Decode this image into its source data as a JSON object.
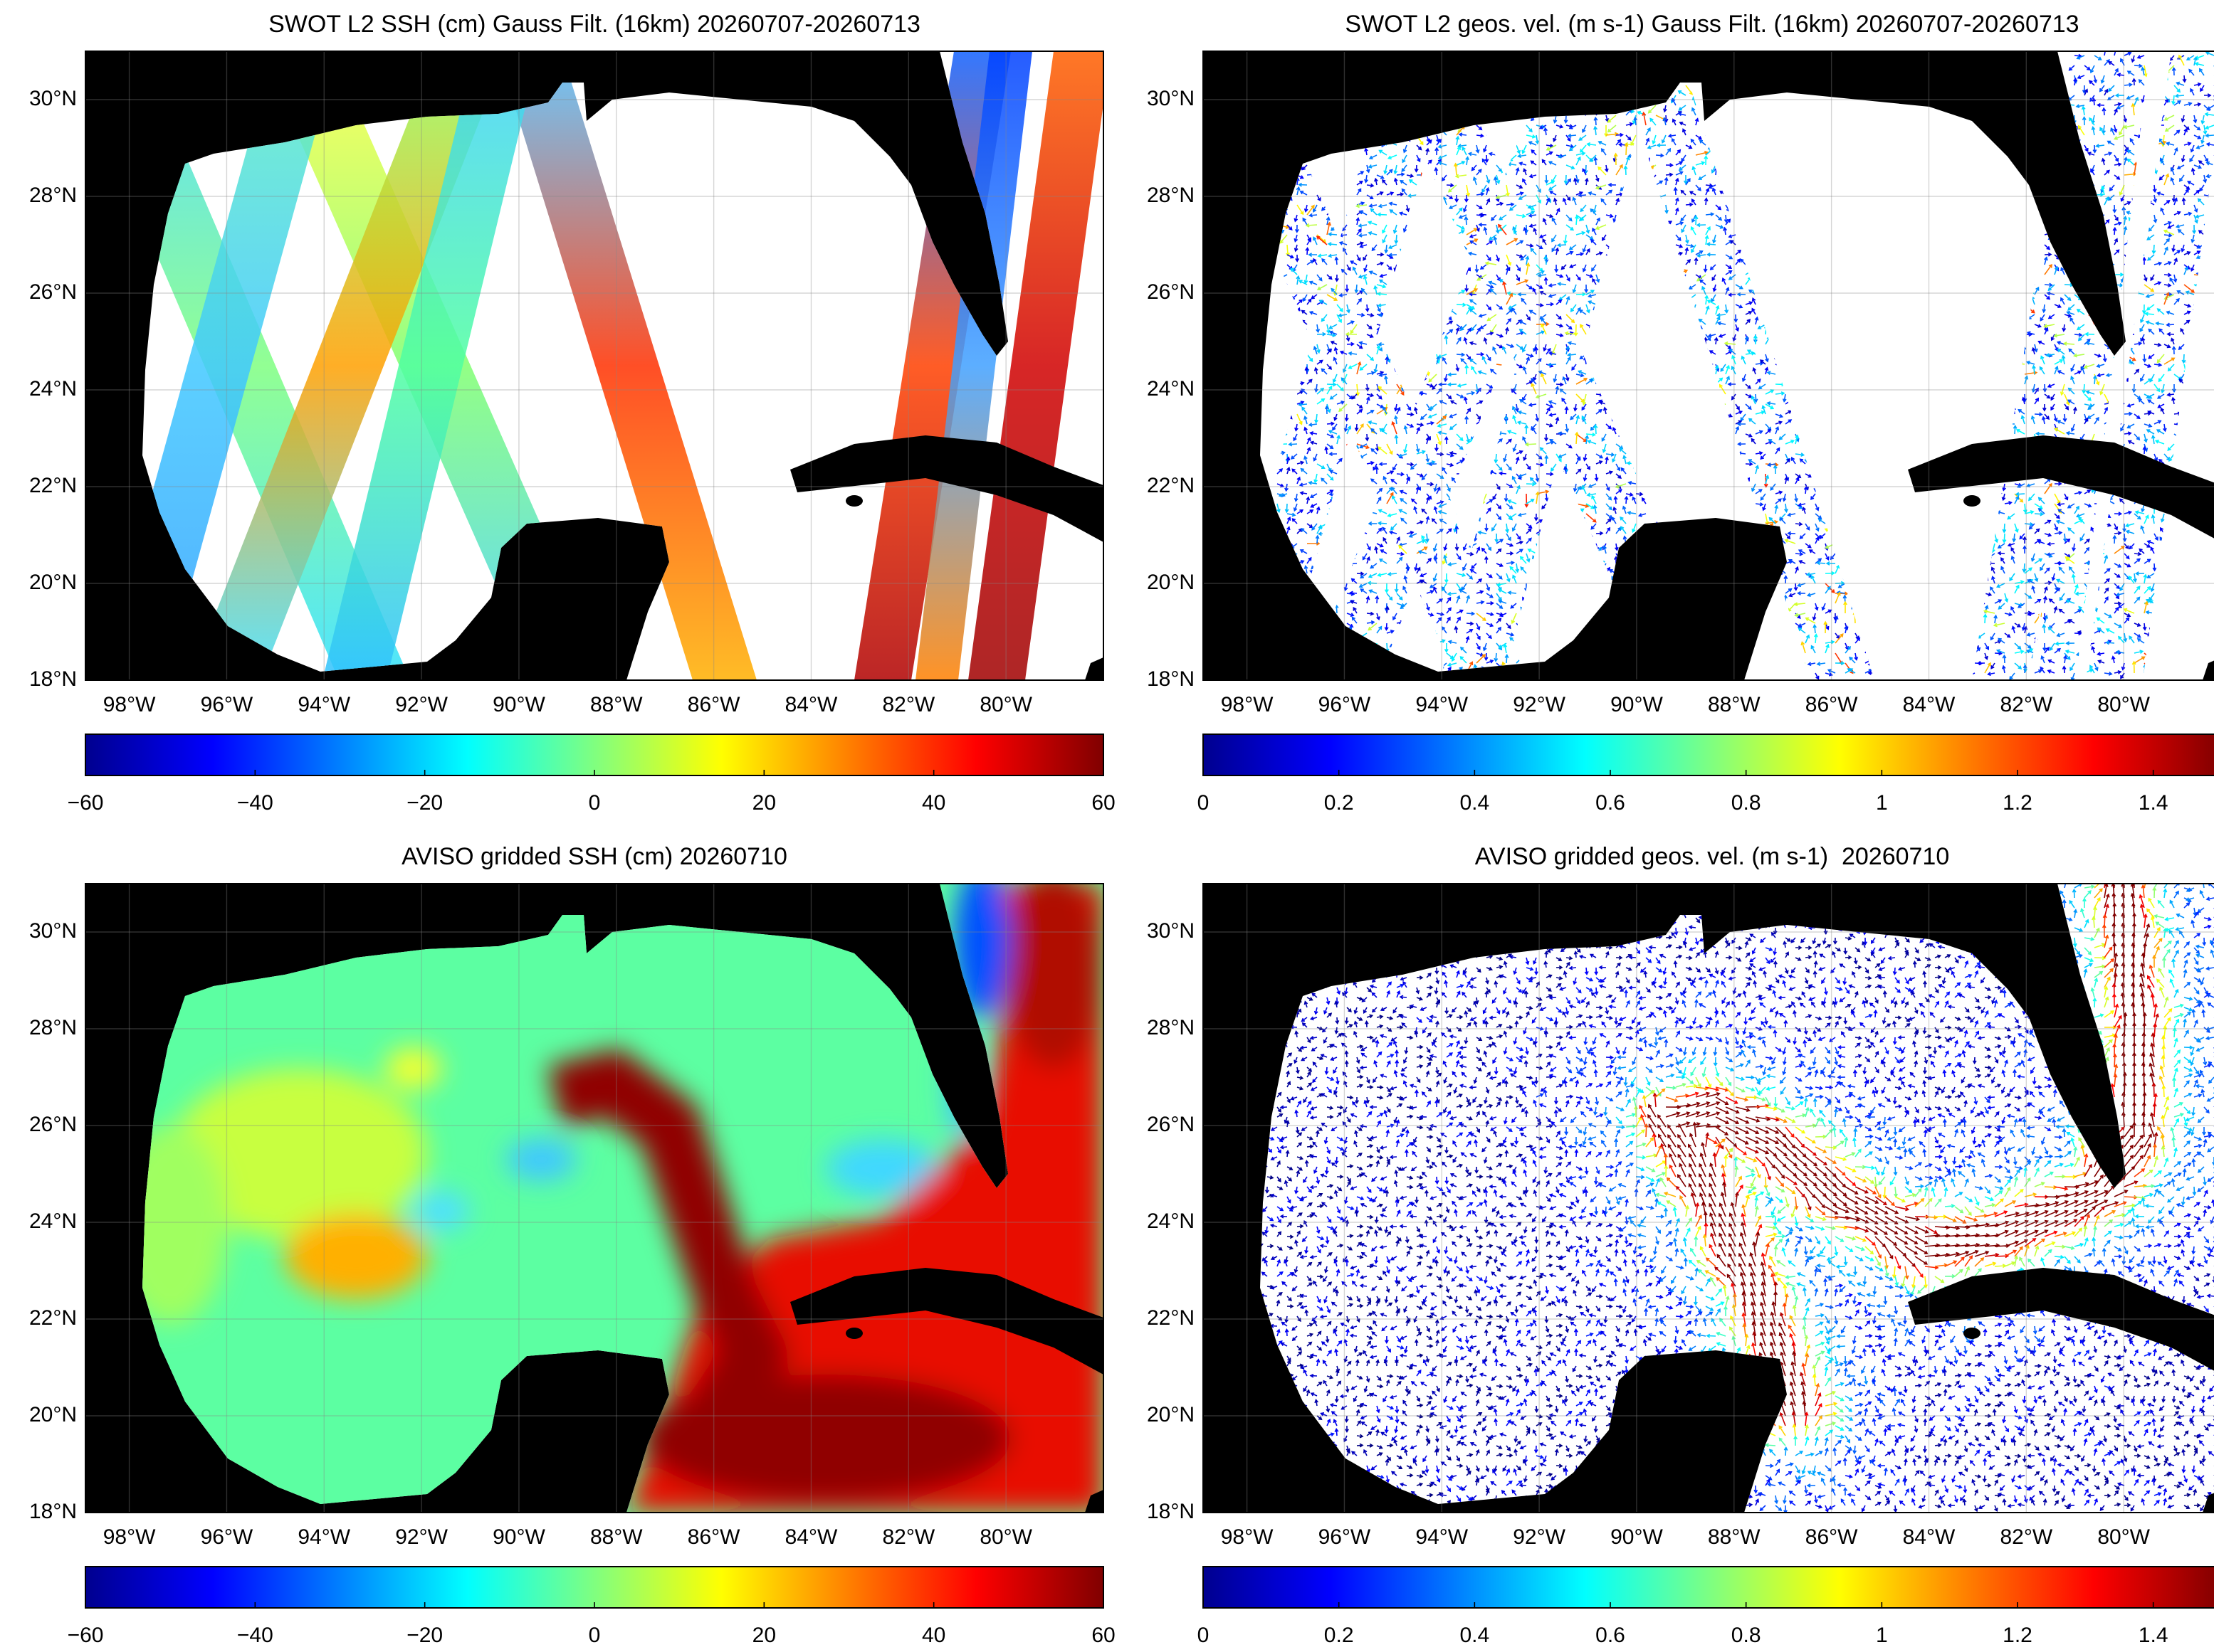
{
  "maps": [
    {
      "type": "swath-ssh",
      "title": "SWOT L2 SSH (cm) Gauss Filt. (16km) 20260707-20260713",
      "xlim": [
        -98.9,
        -78
      ],
      "ylim": [
        18,
        31
      ],
      "xticks": [
        {
          "value": -98,
          "label": "98°W"
        },
        {
          "value": -96,
          "label": "96°W"
        },
        {
          "value": -94,
          "label": "94°W"
        },
        {
          "value": -92,
          "label": "92°W"
        },
        {
          "value": -90,
          "label": "90°W"
        },
        {
          "value": -88,
          "label": "88°W"
        },
        {
          "value": -86,
          "label": "86°W"
        },
        {
          "value": -84,
          "label": "84°W"
        },
        {
          "value": -82,
          "label": "82°W"
        },
        {
          "value": -80,
          "label": "80°W"
        }
      ],
      "yticks": [
        {
          "value": 18,
          "label": "18°N"
        },
        {
          "value": 20,
          "label": "20°N"
        },
        {
          "value": 22,
          "label": "22°N"
        },
        {
          "value": 24,
          "label": "24°N"
        },
        {
          "value": 26,
          "label": "26°N"
        },
        {
          "value": 28,
          "label": "28°N"
        },
        {
          "value": 30,
          "label": "30°N"
        }
      ],
      "colorbar": {
        "clim": [
          -60,
          60
        ],
        "ticks": [
          {
            "value": -60,
            "label": "−60"
          },
          {
            "value": -40,
            "label": "−40"
          },
          {
            "value": -20,
            "label": "−20"
          },
          0,
          20,
          40,
          60
        ]
      }
    },
    {
      "type": "swath-velocity",
      "title": "SWOT L2 geos. vel. (m s-1) Gauss Filt. (16km) 20260707-20260713",
      "xlim": [
        -98.9,
        -78
      ],
      "ylim": [
        18,
        31
      ],
      "xticks": [
        {
          "value": -98,
          "label": "98°W"
        },
        {
          "value": -96,
          "label": "96°W"
        },
        {
          "value": -94,
          "label": "94°W"
        },
        {
          "value": -92,
          "label": "92°W"
        },
        {
          "value": -90,
          "label": "90°W"
        },
        {
          "value": -88,
          "label": "88°W"
        },
        {
          "value": -86,
          "label": "86°W"
        },
        {
          "value": -84,
          "label": "84°W"
        },
        {
          "value": -82,
          "label": "82°W"
        },
        {
          "value": -80,
          "label": "80°W"
        }
      ],
      "yticks": [
        {
          "value": 18,
          "label": "18°N"
        },
        {
          "value": 20,
          "label": "20°N"
        },
        {
          "value": 22,
          "label": "22°N"
        },
        {
          "value": 24,
          "label": "24°N"
        },
        {
          "value": 26,
          "label": "26°N"
        },
        {
          "value": 28,
          "label": "28°N"
        },
        {
          "value": 30,
          "label": "30°N"
        }
      ],
      "colorbar": {
        "clim": [
          0,
          1.5
        ],
        "ticks": [
          0,
          0.2,
          0.4,
          0.6,
          0.8,
          1,
          1.2,
          1.4
        ]
      }
    },
    {
      "type": "gridded-ssh",
      "title": "AVISO gridded SSH (cm) 20260710",
      "xlim": [
        -98.9,
        -78
      ],
      "ylim": [
        18,
        31
      ],
      "xticks": [
        {
          "value": -98,
          "label": "98°W"
        },
        {
          "value": -96,
          "label": "96°W"
        },
        {
          "value": -94,
          "label": "94°W"
        },
        {
          "value": -92,
          "label": "92°W"
        },
        {
          "value": -90,
          "label": "90°W"
        },
        {
          "value": -88,
          "label": "88°W"
        },
        {
          "value": -86,
          "label": "86°W"
        },
        {
          "value": -84,
          "label": "84°W"
        },
        {
          "value": -82,
          "label": "82°W"
        },
        {
          "value": -80,
          "label": "80°W"
        }
      ],
      "yticks": [
        {
          "value": 18,
          "label": "18°N"
        },
        {
          "value": 20,
          "label": "20°N"
        },
        {
          "value": 22,
          "label": "22°N"
        },
        {
          "value": 24,
          "label": "24°N"
        },
        {
          "value": 26,
          "label": "26°N"
        },
        {
          "value": 28,
          "label": "28°N"
        },
        {
          "value": 30,
          "label": "30°N"
        }
      ],
      "colorbar": {
        "clim": [
          -60,
          60
        ],
        "ticks": [
          {
            "value": -60,
            "label": "−60"
          },
          {
            "value": -40,
            "label": "−40"
          },
          {
            "value": -20,
            "label": "−20"
          },
          0,
          20,
          40,
          60
        ]
      }
    },
    {
      "type": "gridded-velocity",
      "title": "AVISO gridded geos. vel. (m s-1)  20260710",
      "xlim": [
        -98.9,
        -78
      ],
      "ylim": [
        18,
        31
      ],
      "xticks": [
        {
          "value": -98,
          "label": "98°W"
        },
        {
          "value": -96,
          "label": "96°W"
        },
        {
          "value": -94,
          "label": "94°W"
        },
        {
          "value": -92,
          "label": "92°W"
        },
        {
          "value": -90,
          "label": "90°W"
        },
        {
          "value": -88,
          "label": "88°W"
        },
        {
          "value": -86,
          "label": "86°W"
        },
        {
          "value": -84,
          "label": "84°W"
        },
        {
          "value": -82,
          "label": "82°W"
        },
        {
          "value": -80,
          "label": "80°W"
        }
      ],
      "yticks": [
        {
          "value": 18,
          "label": "18°N"
        },
        {
          "value": 20,
          "label": "20°N"
        },
        {
          "value": 22,
          "label": "22°N"
        },
        {
          "value": 24,
          "label": "24°N"
        },
        {
          "value": 26,
          "label": "26°N"
        },
        {
          "value": 28,
          "label": "28°N"
        },
        {
          "value": 30,
          "label": "30°N"
        }
      ],
      "colorbar": {
        "clim": [
          0,
          1.5
        ],
        "ticks": [
          0,
          0.2,
          0.4,
          0.6,
          0.8,
          1,
          1.2,
          1.4
        ]
      }
    }
  ]
}
